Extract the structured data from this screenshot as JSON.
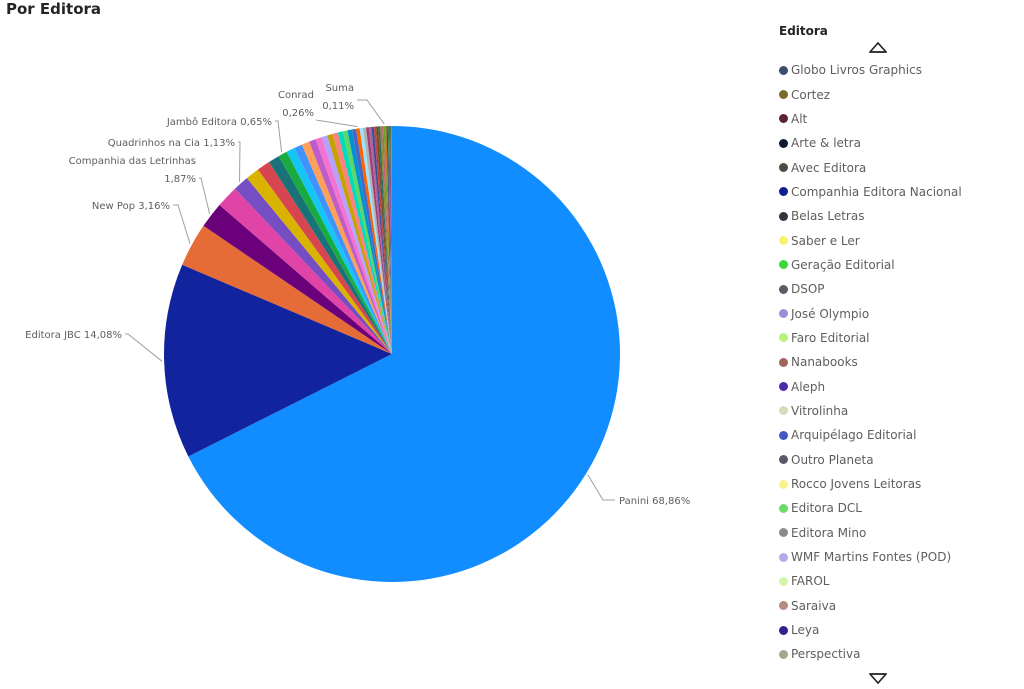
{
  "title": "Por Editora",
  "chart_data": {
    "type": "pie",
    "legend_title": "Editora",
    "legend_position": "right",
    "slices": [
      {
        "name": "Panini",
        "value": 68.86,
        "label": "Panini 68,86%",
        "color": "#118DFF"
      },
      {
        "name": "Editora JBC",
        "value": 14.08,
        "label": "Editora JBC 14,08%",
        "color": "#12239E"
      },
      {
        "name": "New Pop",
        "value": 3.16,
        "label": "New Pop 3,16%",
        "color": "#E66C37"
      },
      {
        "name": "Companhia das Letrinhas",
        "value": 1.87,
        "label": "Companhia das Letrinhas 1,87%",
        "label_lines": [
          "Companhia das Letrinhas",
          "1,87%"
        ],
        "color": "#6B007B"
      },
      {
        "name": "(sem rótulo)",
        "value": 1.6,
        "color": "#E044A7"
      },
      {
        "name": "Quadrinhos na Cia",
        "value": 1.13,
        "label": "Quadrinhos na Cia 1,13%",
        "color": "#744EC2"
      },
      {
        "name": "(sem rótulo)",
        "value": 1.0,
        "color": "#D9B300"
      },
      {
        "name": "(sem rótulo)",
        "value": 0.95,
        "color": "#D64550"
      },
      {
        "name": "(sem rótulo)",
        "value": 0.8,
        "color": "#197278"
      },
      {
        "name": "Jambô Editora",
        "value": 0.65,
        "label": "Jambô Editora 0,65%",
        "color": "#1AAB40"
      },
      {
        "name": "(sem rótulo)",
        "value": 0.62,
        "color": "#15C6F4"
      },
      {
        "name": "(sem rótulo)",
        "value": 0.58,
        "color": "#4092FF"
      },
      {
        "name": "(sem rótulo)",
        "value": 0.55,
        "color": "#FFA058"
      },
      {
        "name": "(sem rótulo)",
        "value": 0.5,
        "color": "#BE5DC9"
      },
      {
        "name": "(sem rótulo)",
        "value": 0.45,
        "color": "#F472D0"
      },
      {
        "name": "(sem rótulo)",
        "value": 0.42,
        "color": "#B5A1FF"
      },
      {
        "name": "(sem rótulo)",
        "value": 0.4,
        "color": "#C4A200"
      },
      {
        "name": "(sem rótulo)",
        "value": 0.38,
        "color": "#FF8080"
      },
      {
        "name": "(sem rótulo)",
        "value": 0.36,
        "color": "#00DBBC"
      },
      {
        "name": "(sem rótulo)",
        "value": 0.34,
        "color": "#5BD667"
      },
      {
        "name": "(sem rótulo)",
        "value": 0.32,
        "color": "#0091D5"
      },
      {
        "name": "(sem rótulo)",
        "value": 0.3,
        "color": "#4668C5"
      },
      {
        "name": "Conrad",
        "value": 0.26,
        "label": "Conrad 0,26%",
        "label_lines": [
          "Conrad",
          "0,26%"
        ],
        "color": "#FF6300"
      },
      {
        "name": "(sem rótulo)",
        "value": 0.24,
        "color": "#99E3FF"
      },
      {
        "name": "(sem rótulo)",
        "value": 0.22,
        "color": "#B2B2B2"
      },
      {
        "name": "(sem rótulo)",
        "value": 0.2,
        "color": "#A43B76"
      },
      {
        "name": "(sem rótulo)",
        "value": 0.18,
        "color": "#A66999"
      },
      {
        "name": "(sem rótulo)",
        "value": 0.17,
        "color": "#3B4E9D"
      },
      {
        "name": "(sem rótulo)",
        "value": 0.16,
        "color": "#C7423C"
      },
      {
        "name": "(sem rótulo)",
        "value": 0.15,
        "color": "#6E4E25"
      },
      {
        "name": "(sem rótulo)",
        "value": 0.14,
        "color": "#2A6E6A"
      },
      {
        "name": "(sem rótulo)",
        "value": 0.13,
        "color": "#8B8B2B"
      },
      {
        "name": "(sem rótulo)",
        "value": 0.12,
        "color": "#C75B7A"
      },
      {
        "name": "Suma",
        "value": 0.11,
        "label": "Suma 0,11%",
        "label_lines": [
          "Suma",
          "0,11%"
        ],
        "color": "#60A917"
      },
      {
        "name": "(sem rótulo)",
        "value": 0.1,
        "color": "#D2691E"
      },
      {
        "name": "(sem rótulo)",
        "value": 0.09,
        "color": "#483D8B"
      },
      {
        "name": "(sem rótulo)",
        "value": 0.08,
        "color": "#2E8B57"
      },
      {
        "name": "(sem rótulo)",
        "value": 0.08,
        "color": "#9932CC"
      },
      {
        "name": "(sem rótulo)",
        "value": 0.07,
        "color": "#556B2F"
      },
      {
        "name": "(sem rótulo)",
        "value": 0.07,
        "color": "#B8860B"
      }
    ],
    "legend": [
      {
        "label": "Globo Livros Graphics",
        "color": "#3B4E6B"
      },
      {
        "label": "Cortez",
        "color": "#7A6A2E"
      },
      {
        "label": "Alt",
        "color": "#5B2333"
      },
      {
        "label": "Arte & letra",
        "color": "#0D1B2A"
      },
      {
        "label": "Avec Editora",
        "color": "#4D4D3F"
      },
      {
        "label": "Companhia Editora Nacional",
        "color": "#101E91"
      },
      {
        "label": "Belas Letras",
        "color": "#2F3540"
      },
      {
        "label": "Saber e Ler",
        "color": "#F5F56B"
      },
      {
        "label": "Geração Editorial",
        "color": "#3AD63A"
      },
      {
        "label": "DSOP",
        "color": "#5C5C66"
      },
      {
        "label": "José Olympio",
        "color": "#9C8FD6"
      },
      {
        "label": "Faro Editorial",
        "color": "#B6F27C"
      },
      {
        "label": "Nanabooks",
        "color": "#A0665C"
      },
      {
        "label": "Aleph",
        "color": "#4B2AAD"
      },
      {
        "label": "Vitrolinha",
        "color": "#D6DBB8"
      },
      {
        "label": "Arquipélago Editorial",
        "color": "#4458C2"
      },
      {
        "label": "Outro Planeta",
        "color": "#5A5A66"
      },
      {
        "label": "Rocco Jovens Leitoras",
        "color": "#F7F28A"
      },
      {
        "label": "Editora DCL",
        "color": "#6BDB6B"
      },
      {
        "label": "Editora Mino",
        "color": "#8C8C8C"
      },
      {
        "label": "WMF Martins Fontes (POD)",
        "color": "#B7A8E6"
      },
      {
        "label": "FAROL",
        "color": "#D2F7A8"
      },
      {
        "label": "Saraiva",
        "color": "#B58C80"
      },
      {
        "label": "Leya",
        "color": "#35208C"
      },
      {
        "label": "Perspectiva",
        "color": "#A3A88F"
      }
    ]
  }
}
